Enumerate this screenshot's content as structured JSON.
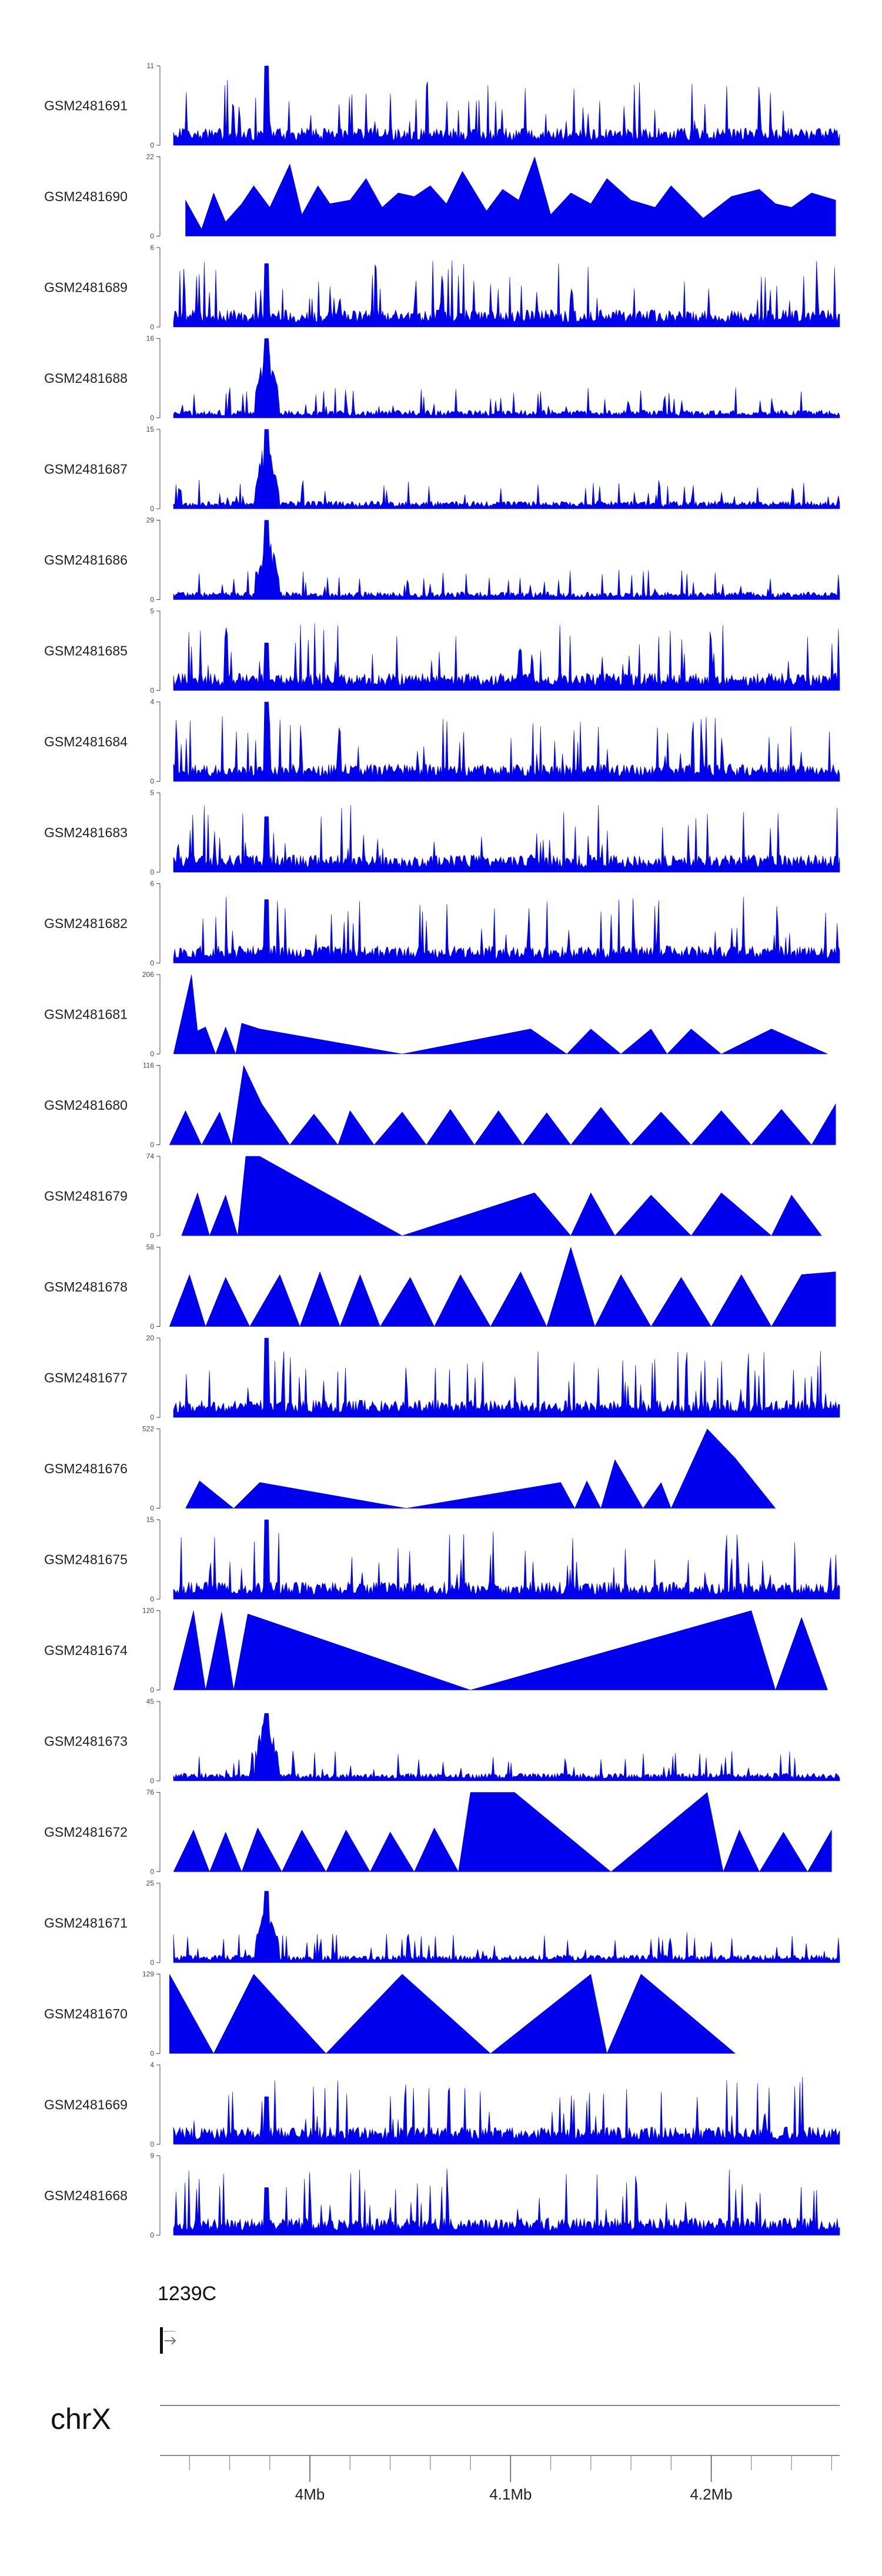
{
  "chart_data": {
    "type": "area",
    "colors": {
      "fill": "#0000ee",
      "axis": "#444444"
    },
    "tracks": [
      {
        "name": "GSM2481691",
        "ymax": 11,
        "ymin": 0,
        "pattern": "noisy",
        "peak": 1.0,
        "seed": 1
      },
      {
        "name": "GSM2481690",
        "ymax": 22,
        "ymin": 0,
        "pattern": "spiky",
        "seed": 2,
        "x": [
          3.938,
          3.946,
          3.952,
          3.958,
          3.966,
          3.972,
          3.98,
          3.99,
          3.996,
          4.004,
          4.01,
          4.02,
          4.028,
          4.036,
          4.044,
          4.052,
          4.06,
          4.068,
          4.076,
          4.088,
          4.096,
          4.104,
          4.112,
          4.12,
          4.13,
          4.14,
          4.148,
          4.16,
          4.172,
          4.18,
          4.196,
          4.21,
          4.224,
          4.232,
          4.24,
          4.25,
          4.262
        ],
        "y": [
          10,
          2,
          12,
          4,
          9,
          14,
          8,
          20,
          6,
          14,
          9,
          10,
          16,
          8,
          12,
          11,
          14,
          9,
          18,
          7,
          13,
          10,
          22,
          6,
          12,
          9,
          16,
          10,
          8,
          14,
          5,
          11,
          13,
          9,
          8,
          12,
          10
        ]
      },
      {
        "name": "GSM2481689",
        "ymax": 6,
        "ymin": 0,
        "pattern": "noisy",
        "peak": 0.8,
        "seed": 3
      },
      {
        "name": "GSM2481688",
        "ymax": 16,
        "ymin": 0,
        "pattern": "peaked",
        "peak": 1.0,
        "seed": 4
      },
      {
        "name": "GSM2481687",
        "ymax": 15,
        "ymin": 0,
        "pattern": "peaked",
        "peak": 1.0,
        "seed": 5
      },
      {
        "name": "GSM2481686",
        "ymax": 29,
        "ymin": 0,
        "pattern": "peaked",
        "peak": 1.0,
        "seed": 6
      },
      {
        "name": "GSM2481685",
        "ymax": 5,
        "ymin": 0,
        "pattern": "noisy",
        "peak": 0.6,
        "seed": 7
      },
      {
        "name": "GSM2481684",
        "ymax": 4,
        "ymin": 0,
        "pattern": "noisy",
        "peak": 1.0,
        "seed": 8
      },
      {
        "name": "GSM2481683",
        "ymax": 5,
        "ymin": 0,
        "pattern": "noisy",
        "peak": 0.7,
        "seed": 9
      },
      {
        "name": "GSM2481682",
        "ymax": 6,
        "ymin": 0,
        "pattern": "noisy",
        "peak": 0.8,
        "seed": 10
      },
      {
        "name": "GSM2481681",
        "ymax": 206,
        "ymin": 0,
        "pattern": "spiky",
        "x": [
          3.932,
          3.941,
          3.944,
          3.948,
          3.953,
          3.958,
          3.963,
          3.966,
          3.975,
          4.046,
          4.11,
          4.128,
          4.14,
          4.155,
          4.17,
          4.178,
          4.19,
          4.205,
          4.23,
          4.258
        ],
        "y": [
          0,
          206,
          60,
          70,
          0,
          70,
          0,
          80,
          65,
          0,
          65,
          0,
          65,
          0,
          65,
          0,
          65,
          0,
          65,
          0
        ]
      },
      {
        "name": "GSM2481680",
        "ymax": 116,
        "ymin": 0,
        "pattern": "spiky",
        "x": [
          3.93,
          3.938,
          3.946,
          3.955,
          3.961,
          3.967,
          3.976,
          3.99,
          4.002,
          4.014,
          4.02,
          4.032,
          4.046,
          4.058,
          4.07,
          4.082,
          4.094,
          4.106,
          4.118,
          4.13,
          4.145,
          4.16,
          4.175,
          4.19,
          4.205,
          4.22,
          4.235,
          4.25,
          4.262
        ],
        "y": [
          0,
          50,
          0,
          48,
          0,
          116,
          60,
          0,
          45,
          0,
          50,
          0,
          48,
          0,
          52,
          0,
          50,
          0,
          47,
          0,
          55,
          0,
          48,
          0,
          50,
          0,
          52,
          0,
          60
        ]
      },
      {
        "name": "GSM2481679",
        "ymax": 74,
        "ymin": 0,
        "pattern": "spiky",
        "x": [
          3.936,
          3.944,
          3.95,
          3.958,
          3.964,
          3.968,
          3.975,
          4.046,
          4.112,
          4.13,
          4.14,
          4.152,
          4.17,
          4.19,
          4.205,
          4.23,
          4.24,
          4.255
        ],
        "y": [
          0,
          40,
          0,
          38,
          0,
          74,
          74,
          0,
          40,
          0,
          40,
          0,
          38,
          0,
          40,
          0,
          38,
          0
        ]
      },
      {
        "name": "GSM2481678",
        "ymax": 58,
        "ymin": 0,
        "pattern": "spiky",
        "x": [
          3.93,
          3.94,
          3.948,
          3.958,
          3.97,
          3.985,
          3.995,
          4.005,
          4.015,
          4.025,
          4.035,
          4.05,
          4.062,
          4.075,
          4.09,
          4.105,
          4.118,
          4.13,
          4.142,
          4.155,
          4.17,
          4.185,
          4.2,
          4.215,
          4.23,
          4.245,
          4.262
        ],
        "y": [
          0,
          38,
          0,
          36,
          0,
          38,
          0,
          40,
          0,
          38,
          0,
          36,
          0,
          38,
          0,
          40,
          0,
          58,
          0,
          38,
          0,
          36,
          0,
          38,
          0,
          38,
          40
        ]
      },
      {
        "name": "GSM2481677",
        "ymax": 20,
        "ymin": 0,
        "pattern": "noisy",
        "peak": 1.0,
        "seed": 11
      },
      {
        "name": "GSM2481676",
        "ymax": 522,
        "ymin": 0,
        "pattern": "spiky",
        "x": [
          3.938,
          3.945,
          3.962,
          3.975,
          4.048,
          4.125,
          4.132,
          4.138,
          4.145,
          4.152,
          4.166,
          4.175,
          4.18,
          4.198,
          4.212,
          4.232
        ],
        "y": [
          0,
          180,
          0,
          170,
          0,
          170,
          0,
          180,
          0,
          320,
          0,
          170,
          0,
          522,
          330,
          0
        ]
      },
      {
        "name": "GSM2481675",
        "ymax": 15,
        "ymin": 0,
        "pattern": "noisy",
        "peak": 1.0,
        "seed": 12
      },
      {
        "name": "GSM2481674",
        "ymax": 120,
        "ymin": 0,
        "pattern": "spiky",
        "x": [
          3.932,
          3.942,
          3.948,
          3.956,
          3.962,
          3.969,
          3.974,
          4.08,
          4.22,
          4.232,
          4.245,
          4.258
        ],
        "y": [
          0,
          120,
          0,
          118,
          0,
          115,
          110,
          0,
          120,
          0,
          110,
          0
        ]
      },
      {
        "name": "GSM2481673",
        "ymax": 45,
        "ymin": 0,
        "pattern": "peaked",
        "peak": 0.85,
        "seed": 13
      },
      {
        "name": "GSM2481672",
        "ymax": 76,
        "ymin": 0,
        "pattern": "spiky",
        "x": [
          3.932,
          3.942,
          3.95,
          3.958,
          3.966,
          3.974,
          3.986,
          3.996,
          4.008,
          4.018,
          4.03,
          4.04,
          4.052,
          4.062,
          4.074,
          4.08,
          4.102,
          4.15,
          4.198,
          4.206,
          4.214,
          4.224,
          4.236,
          4.248,
          4.26
        ],
        "y": [
          0,
          40,
          0,
          38,
          0,
          42,
          0,
          40,
          0,
          40,
          0,
          38,
          0,
          42,
          0,
          76,
          76,
          0,
          76,
          0,
          40,
          0,
          38,
          0,
          40
        ]
      },
      {
        "name": "GSM2481671",
        "ymax": 25,
        "ymin": 0,
        "pattern": "peaked",
        "peak": 0.9,
        "seed": 14
      },
      {
        "name": "GSM2481670",
        "ymax": 129,
        "ymin": 0,
        "pattern": "spiky",
        "x": [
          3.93,
          3.952,
          3.972,
          4.008,
          4.046,
          4.09,
          4.14,
          4.148,
          4.165,
          4.212
        ],
        "y": [
          129,
          0,
          129,
          0,
          129,
          0,
          129,
          0,
          129,
          0
        ]
      },
      {
        "name": "GSM2481669",
        "ymax": 4,
        "ymin": 0,
        "pattern": "noisy",
        "peak": 0.6,
        "seed": 15
      },
      {
        "name": "GSM2481668",
        "ymax": 9,
        "ymin": 0,
        "pattern": "noisy",
        "peak": 0.6,
        "seed": 16
      }
    ],
    "gene": {
      "label": "1239C"
    },
    "chromosome": "chrX",
    "xaxis": {
      "range": [
        3.932,
        4.264
      ],
      "major_ticks": [
        4.0,
        4.1,
        4.2
      ],
      "major_labels": [
        "4Mb",
        "4.1Mb",
        "4.2Mb"
      ],
      "minor_step": 0.02
    }
  }
}
